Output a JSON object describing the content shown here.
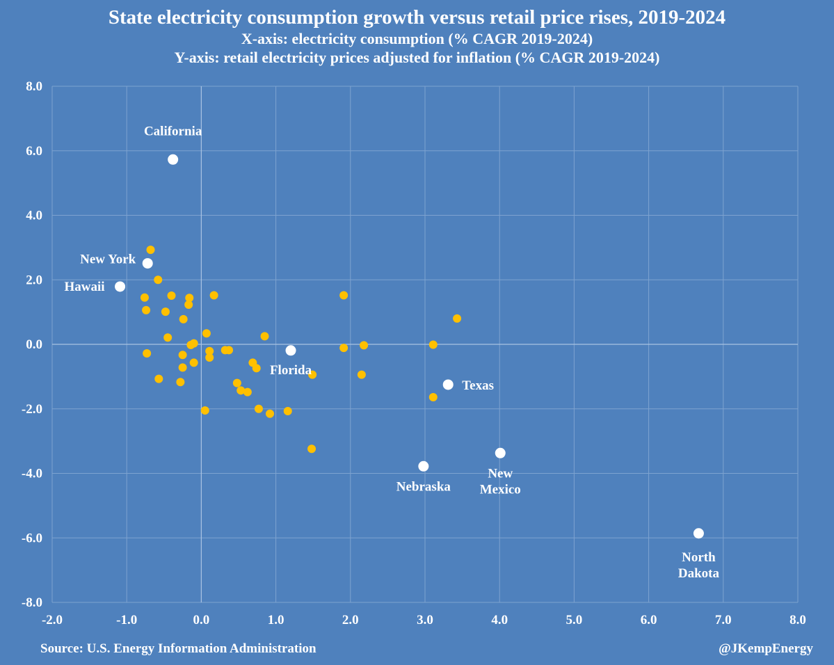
{
  "chart_data": {
    "type": "scatter",
    "title": "State electricity consumption growth versus retail price rises, 2019-2024",
    "subtitle_x": "X-axis: electricity consumption (% CAGR 2019-2024)",
    "subtitle_y": "Y-axis: retail electricity prices adjusted for inflation (% CAGR 2019-2024)",
    "xlim": [
      -2.0,
      8.0
    ],
    "ylim": [
      -8.0,
      8.0
    ],
    "x_ticks": [
      "-2.0",
      "-1.0",
      "0.0",
      "1.0",
      "2.0",
      "3.0",
      "4.0",
      "5.0",
      "6.0",
      "7.0",
      "8.0"
    ],
    "y_ticks": [
      "8.0",
      "6.0",
      "4.0",
      "2.0",
      "0.0",
      "-2.0",
      "-4.0",
      "-6.0",
      "-8.0"
    ],
    "grid": true,
    "colors": {
      "background": "#4f81bd",
      "grid": "#7ea3d0",
      "axis": "#a9c3e3",
      "point": "#ffc000",
      "highlight": "#ffffff"
    },
    "highlighted": [
      {
        "name": "California",
        "x": -0.38,
        "y": 5.73
      },
      {
        "name": "New York",
        "x": -0.72,
        "y": 2.51
      },
      {
        "name": "Hawaii",
        "x": -1.09,
        "y": 1.79
      },
      {
        "name": "Florida",
        "x": 1.2,
        "y": -0.19
      },
      {
        "name": "Texas",
        "x": 3.31,
        "y": -1.25
      },
      {
        "name": "Nebraska",
        "x": 2.98,
        "y": -3.78
      },
      {
        "name": "New Mexico",
        "x": 4.01,
        "y": -3.37
      },
      {
        "name": "North Dakota",
        "x": 6.67,
        "y": -5.86
      }
    ],
    "other_states": [
      [
        -0.68,
        2.93
      ],
      [
        -0.58,
        2.0
      ],
      [
        -0.76,
        1.45
      ],
      [
        -0.4,
        1.51
      ],
      [
        -0.16,
        1.44
      ],
      [
        -0.17,
        1.23
      ],
      [
        0.17,
        1.52
      ],
      [
        -0.74,
        1.06
      ],
      [
        -0.48,
        1.01
      ],
      [
        -0.24,
        0.78
      ],
      [
        0.07,
        0.34
      ],
      [
        -0.45,
        0.21
      ],
      [
        -0.14,
        -0.02
      ],
      [
        -0.1,
        0.03
      ],
      [
        0.11,
        -0.21
      ],
      [
        0.11,
        -0.41
      ],
      [
        0.32,
        -0.18
      ],
      [
        0.37,
        -0.18
      ],
      [
        0.85,
        0.25
      ],
      [
        -0.73,
        -0.28
      ],
      [
        -0.25,
        -0.33
      ],
      [
        -0.1,
        -0.57
      ],
      [
        -0.25,
        -0.72
      ],
      [
        0.69,
        -0.57
      ],
      [
        0.74,
        -0.74
      ],
      [
        -0.57,
        -1.07
      ],
      [
        -0.28,
        -1.17
      ],
      [
        0.48,
        -1.2
      ],
      [
        0.53,
        -1.43
      ],
      [
        0.62,
        -1.48
      ],
      [
        0.05,
        -2.05
      ],
      [
        0.77,
        -2.0
      ],
      [
        0.92,
        -2.15
      ],
      [
        1.16,
        -2.07
      ],
      [
        1.49,
        -0.94
      ],
      [
        1.48,
        -3.24
      ],
      [
        1.91,
        1.52
      ],
      [
        1.91,
        -0.11
      ],
      [
        2.18,
        -0.03
      ],
      [
        2.15,
        -0.94
      ],
      [
        3.11,
        -0.01
      ],
      [
        3.43,
        0.8
      ],
      [
        3.11,
        -1.64
      ]
    ]
  },
  "footer": {
    "source": "Source: U.S. Energy Information Administration",
    "handle": "@JKempEnergy"
  }
}
